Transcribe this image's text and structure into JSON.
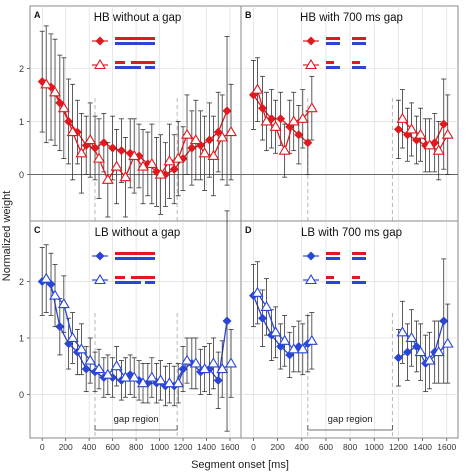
{
  "figure": {
    "xlabel": "Segment onset [ms]",
    "ylabel": "Normalized weight",
    "gap_region_label": "gap region"
  },
  "colors": {
    "HB": "#e0191e",
    "LB": "#2a46d6",
    "grid": "#d8d8d8",
    "panel_border": "#8a8a8a",
    "gap_line": "#b0b0b0"
  },
  "chart_data": [
    {
      "type": "line",
      "panel": "A",
      "title": "HB without a gap",
      "color_key": "HB",
      "xlim": [
        -70,
        1660
      ],
      "ylim": [
        -0.8,
        3.1
      ],
      "x_ticks": [
        0,
        200,
        400,
        600,
        800,
        1000,
        1200,
        1400,
        1600
      ],
      "y_ticks": [
        0,
        1,
        2
      ],
      "gap": [
        450,
        1150
      ],
      "show_gap_label": false,
      "reference_line": 0,
      "series": [
        {
          "marker": "diamond-filled",
          "x": [
            0,
            75,
            150,
            225,
            300,
            375,
            450,
            525,
            600,
            675,
            750,
            825,
            900,
            975,
            1050,
            1125,
            1200,
            1275,
            1350,
            1425,
            1500,
            1575
          ],
          "y": [
            1.75,
            1.65,
            1.35,
            1.0,
            0.8,
            0.55,
            0.5,
            0.6,
            0.5,
            0.45,
            0.4,
            0.35,
            0.2,
            0.05,
            0.0,
            0.1,
            0.3,
            0.5,
            0.55,
            0.65,
            0.8,
            1.2
          ],
          "err": [
            0.95,
            1.0,
            0.9,
            0.8,
            0.6,
            0.55,
            0.6,
            0.55,
            0.6,
            0.6,
            0.65,
            0.6,
            0.6,
            0.65,
            0.6,
            0.65,
            0.6,
            0.7,
            0.65,
            0.7,
            0.75,
            1.4
          ]
        },
        {
          "marker": "triangle-open",
          "x": [
            0,
            75,
            150,
            225,
            300,
            375,
            450,
            525,
            600,
            675,
            750,
            825,
            900,
            975,
            1050,
            1125,
            1200,
            1275,
            1350,
            1425,
            1500,
            1575
          ],
          "y": [
            1.7,
            1.55,
            1.25,
            0.8,
            0.4,
            0.65,
            0.3,
            -0.1,
            0.15,
            -0.05,
            0.35,
            0.15,
            0.2,
            0.0,
            0.25,
            0.3,
            0.75,
            0.65,
            0.4,
            0.35,
            0.7,
            0.8
          ],
          "err": [
            1.1,
            1.0,
            0.95,
            0.9,
            0.75,
            0.7,
            0.75,
            0.7,
            0.7,
            0.75,
            0.7,
            0.7,
            0.75,
            0.75,
            0.7,
            0.7,
            0.75,
            0.75,
            0.7,
            0.75,
            0.8,
            0.9
          ]
        }
      ]
    },
    {
      "type": "line",
      "panel": "B",
      "title": "HB with 700 ms gap",
      "color_key": "HB",
      "xlim": [
        -70,
        1660
      ],
      "ylim": [
        -0.8,
        3.1
      ],
      "x_ticks": [
        0,
        200,
        400,
        600,
        800,
        1000,
        1200,
        1400,
        1600
      ],
      "y_ticks": [
        0,
        1,
        2
      ],
      "gap": [
        450,
        1150
      ],
      "show_gap_label": false,
      "reference_line": 0,
      "series": [
        {
          "marker": "diamond-filled",
          "x": [
            0,
            75,
            150,
            225,
            300,
            375,
            450,
            1200,
            1275,
            1350,
            1425,
            1500,
            1575
          ],
          "y": [
            1.5,
            1.25,
            1.05,
            1.05,
            0.9,
            0.75,
            0.6,
            0.85,
            0.75,
            0.65,
            0.55,
            0.6,
            0.95
          ],
          "err": [
            0.65,
            0.6,
            0.55,
            0.5,
            0.5,
            0.55,
            0.6,
            0.55,
            0.5,
            0.45,
            0.5,
            0.55,
            0.85
          ]
        },
        {
          "marker": "triangle-open",
          "x": [
            0,
            75,
            150,
            225,
            300,
            375,
            450,
            1200,
            1275,
            1350,
            1425,
            1500,
            1575
          ],
          "y": [
            1.6,
            1.0,
            0.9,
            0.45,
            1.0,
            1.05,
            1.25,
            1.05,
            0.85,
            0.75,
            0.55,
            0.45,
            0.75
          ],
          "err": [
            0.6,
            0.55,
            0.5,
            0.5,
            0.55,
            0.55,
            0.6,
            0.55,
            0.5,
            0.5,
            0.5,
            0.55,
            0.75
          ]
        }
      ]
    },
    {
      "type": "line",
      "panel": "C",
      "title": "LB without a gap",
      "color_key": "LB",
      "xlim": [
        -70,
        1660
      ],
      "ylim": [
        -0.7,
        3.0
      ],
      "x_ticks": [
        0,
        200,
        400,
        600,
        800,
        1000,
        1200,
        1400,
        1600
      ],
      "y_ticks": [
        0,
        1,
        2
      ],
      "gap": [
        450,
        1150
      ],
      "show_gap_label": true,
      "reference_line": null,
      "series": [
        {
          "marker": "diamond-filled",
          "x": [
            0,
            75,
            150,
            225,
            300,
            375,
            450,
            525,
            600,
            675,
            750,
            825,
            900,
            975,
            1050,
            1125,
            1200,
            1275,
            1350,
            1425,
            1500,
            1575
          ],
          "y": [
            2.0,
            1.95,
            1.2,
            0.9,
            0.75,
            0.45,
            0.4,
            0.3,
            0.3,
            0.25,
            0.35,
            0.25,
            0.2,
            0.2,
            0.15,
            0.15,
            0.45,
            0.55,
            0.4,
            0.45,
            0.25,
            1.3
          ],
          "err": [
            0.6,
            0.55,
            0.5,
            0.45,
            0.4,
            0.4,
            0.35,
            0.35,
            0.35,
            0.35,
            0.35,
            0.35,
            0.35,
            0.35,
            0.35,
            0.35,
            0.4,
            0.45,
            0.4,
            0.45,
            0.5,
            1.95
          ]
        },
        {
          "marker": "triangle-open",
          "x": [
            0,
            75,
            150,
            225,
            300,
            375,
            450,
            525,
            600,
            675,
            750,
            825,
            900,
            975,
            1050,
            1125,
            1200,
            1275,
            1350,
            1425,
            1500,
            1575
          ],
          "y": [
            2.05,
            1.75,
            1.6,
            1.0,
            0.8,
            0.6,
            0.45,
            0.35,
            0.5,
            0.3,
            0.3,
            0.2,
            0.3,
            0.25,
            0.2,
            0.2,
            0.6,
            0.55,
            0.45,
            0.55,
            0.45,
            0.55
          ],
          "err": [
            0.6,
            0.55,
            0.5,
            0.45,
            0.45,
            0.4,
            0.35,
            0.35,
            0.35,
            0.35,
            0.35,
            0.35,
            0.35,
            0.35,
            0.35,
            0.35,
            0.4,
            0.45,
            0.4,
            0.45,
            0.5,
            0.6
          ]
        }
      ]
    },
    {
      "type": "line",
      "panel": "D",
      "title": "LB with 700 ms gap",
      "color_key": "LB",
      "xlim": [
        -70,
        1660
      ],
      "ylim": [
        -0.7,
        3.0
      ],
      "x_ticks": [
        0,
        200,
        400,
        600,
        800,
        1000,
        1200,
        1400,
        1600
      ],
      "y_ticks": [
        0,
        1,
        2
      ],
      "gap": [
        450,
        1150
      ],
      "show_gap_label": true,
      "reference_line": null,
      "series": [
        {
          "marker": "diamond-filled",
          "x": [
            0,
            75,
            150,
            225,
            300,
            375,
            450,
            1200,
            1275,
            1350,
            1425,
            1500,
            1575
          ],
          "y": [
            1.75,
            1.35,
            1.05,
            0.85,
            0.7,
            0.85,
            0.9,
            0.65,
            0.75,
            0.85,
            0.55,
            0.75,
            1.3
          ],
          "err": [
            0.55,
            0.5,
            0.45,
            0.4,
            0.4,
            0.45,
            0.5,
            0.5,
            0.5,
            0.45,
            0.5,
            0.55,
            1.1
          ]
        },
        {
          "marker": "triangle-open",
          "x": [
            0,
            75,
            150,
            225,
            300,
            375,
            450,
            1200,
            1275,
            1350,
            1425,
            1500,
            1575
          ],
          "y": [
            1.8,
            1.55,
            1.1,
            0.95,
            0.8,
            0.8,
            0.95,
            1.1,
            1.0,
            0.75,
            0.6,
            0.75,
            0.9
          ],
          "err": [
            0.55,
            0.5,
            0.45,
            0.45,
            0.4,
            0.45,
            0.5,
            0.55,
            0.5,
            0.5,
            0.5,
            0.55,
            0.7
          ]
        }
      ]
    }
  ]
}
